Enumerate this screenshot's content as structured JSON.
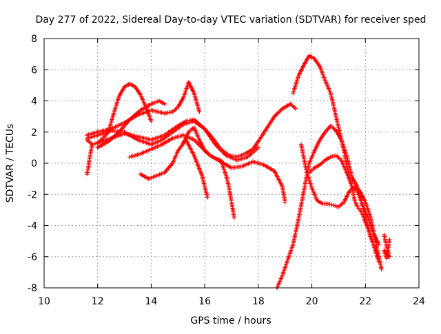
{
  "chart_data": {
    "type": "scatter",
    "title": "Day 277 of 2022, Sidereal Day-to-day VTEC variation (SDTVAR) for receiver sped",
    "xlabel": "GPS time / hours",
    "ylabel": "SDTVAR / TECUs",
    "xlim": [
      10,
      24
    ],
    "ylim": [
      -8,
      8
    ],
    "xticks": [
      "10",
      "12",
      "14",
      "16",
      "18",
      "20",
      "22",
      "24"
    ],
    "yticks": [
      "-8",
      "-6",
      "-4",
      "-2",
      "0",
      "2",
      "4",
      "6",
      "8"
    ],
    "grid": true,
    "marker": "+",
    "color": "#ff0000",
    "series": [
      {
        "x": [
          11.6,
          11.8,
          12.0,
          12.2,
          12.4,
          12.6,
          12.8,
          13.0,
          13.2,
          13.4,
          13.6,
          13.8,
          14.0
        ],
        "y": [
          1.5,
          1.2,
          1.3,
          1.6,
          2.0,
          3.2,
          4.3,
          4.9,
          5.1,
          4.9,
          4.4,
          3.6,
          2.7
        ]
      },
      {
        "x": [
          12.0,
          12.4,
          12.8,
          13.2,
          13.6,
          14.0,
          14.3,
          14.5
        ],
        "y": [
          1.0,
          1.4,
          2.0,
          2.8,
          3.4,
          3.8,
          4.0,
          3.8
        ]
      },
      {
        "x": [
          11.6,
          12.0,
          12.5,
          13.0,
          13.5,
          14.0,
          14.5,
          14.8,
          15.0,
          15.2,
          15.4,
          15.6,
          15.8
        ],
        "y": [
          1.8,
          2.0,
          2.2,
          2.6,
          3.1,
          3.4,
          3.2,
          3.3,
          3.6,
          4.2,
          5.2,
          4.5,
          3.3
        ]
      },
      {
        "x": [
          12.0,
          12.5,
          13.0,
          13.5,
          14.0,
          14.5,
          15.0,
          15.3,
          15.6,
          16.0,
          16.3,
          16.6,
          16.9,
          17.2,
          17.5,
          17.8,
          18.0,
          18.3,
          18.6,
          18.9,
          19.2,
          19.4
        ],
        "y": [
          1.3,
          1.6,
          1.9,
          1.7,
          1.5,
          1.8,
          2.4,
          2.7,
          2.8,
          2.2,
          1.6,
          0.9,
          0.5,
          0.4,
          0.6,
          0.9,
          1.4,
          2.2,
          3.0,
          3.5,
          3.8,
          3.5
        ]
      },
      {
        "x": [
          11.6,
          12.0,
          12.5,
          13.0,
          13.5,
          14.0,
          14.4,
          14.8,
          15.2,
          15.6,
          16.0,
          16.4,
          16.8,
          17.2,
          17.6,
          17.8,
          18.0
        ],
        "y": [
          1.6,
          1.8,
          2.1,
          2.0,
          1.5,
          1.2,
          1.5,
          2.0,
          2.5,
          2.7,
          2.2,
          1.2,
          0.5,
          0.2,
          0.4,
          0.7,
          1.0
        ]
      },
      {
        "x": [
          13.2,
          13.6,
          14.0,
          14.4,
          14.8,
          15.2,
          15.6,
          15.9,
          16.2,
          16.6,
          17.0,
          17.4,
          17.8,
          18.2,
          18.6,
          18.9,
          19.0
        ],
        "y": [
          0.4,
          0.6,
          0.9,
          1.2,
          1.6,
          1.8,
          1.5,
          1.0,
          0.5,
          0.1,
          -0.3,
          -0.2,
          0.1,
          -0.1,
          -0.5,
          -1.5,
          -2.5
        ]
      },
      {
        "x": [
          13.6,
          13.9,
          14.2,
          14.5,
          14.8,
          15.0,
          15.3,
          15.6,
          15.9,
          16.1
        ],
        "y": [
          -0.7,
          -1.0,
          -0.8,
          -0.6,
          0.0,
          0.8,
          1.5,
          0.5,
          -0.8,
          -2.2
        ]
      },
      {
        "x": [
          15.2,
          15.4,
          15.6,
          15.8,
          16.0,
          16.2,
          16.4,
          16.6,
          16.8,
          16.9,
          17.0,
          17.1
        ],
        "y": [
          1.3,
          2.0,
          2.3,
          1.5,
          0.8,
          0.5,
          0.3,
          0.2,
          -0.8,
          -1.5,
          -2.5,
          -3.5
        ]
      },
      {
        "x": [
          19.3,
          19.5,
          19.7,
          19.9,
          20.1,
          20.3,
          20.5,
          20.7,
          20.8,
          20.9,
          21.0,
          21.1,
          21.2,
          21.3,
          21.4,
          21.5,
          21.6,
          21.7,
          21.8,
          21.9,
          22.0,
          22.1,
          22.2,
          22.3,
          22.4,
          22.5
        ],
        "y": [
          4.5,
          5.6,
          6.3,
          6.9,
          6.7,
          6.2,
          5.3,
          4.5,
          3.8,
          3.0,
          2.3,
          1.5,
          0.8,
          -0.1,
          -0.8,
          -1.5,
          -2.4,
          -2.8,
          -3.0,
          -3.3,
          -3.8,
          -4.2,
          -4.8,
          -5.2,
          -5.8,
          -6.3
        ]
      },
      {
        "x": [
          18.7,
          18.9,
          19.1,
          19.3,
          19.5,
          19.7,
          19.9,
          20.1,
          20.3,
          20.5,
          20.7,
          20.9,
          21.1,
          21.3,
          21.5,
          21.7,
          21.9,
          22.1,
          22.3,
          22.5
        ],
        "y": [
          -8.0,
          -7.2,
          -6.2,
          -5.2,
          -3.6,
          -1.8,
          0.0,
          0.8,
          1.5,
          2.0,
          2.4,
          2.1,
          1.5,
          0.5,
          -0.9,
          -1.5,
          -2.8,
          -4.1,
          -5.2,
          -6.0
        ]
      },
      {
        "x": [
          19.6,
          19.8,
          20.0,
          20.2,
          20.4,
          20.6,
          20.8,
          21.0,
          21.2,
          21.4,
          21.6,
          21.8,
          22.0,
          22.2,
          22.4,
          22.6
        ],
        "y": [
          1.2,
          -0.5,
          -1.6,
          -2.4,
          -2.6,
          -2.6,
          -2.7,
          -2.8,
          -2.5,
          -1.8,
          -1.5,
          -1.8,
          -2.5,
          -3.5,
          -5.2,
          -6.8
        ]
      },
      {
        "x": [
          19.9,
          20.1,
          20.3,
          20.5,
          20.7,
          20.9,
          21.1,
          21.3,
          21.5,
          21.7,
          21.9,
          22.1,
          22.3,
          22.5
        ],
        "y": [
          -0.6,
          -0.3,
          -0.1,
          0.2,
          0.4,
          0.5,
          0.2,
          -0.6,
          -1.5,
          -1.8,
          -2.7,
          -3.5,
          -4.5,
          -5.2
        ]
      },
      {
        "x": [
          22.7,
          22.75,
          22.8,
          22.85,
          22.9,
          22.7,
          22.75,
          22.8,
          22.85,
          22.9
        ],
        "y": [
          -4.6,
          -5.0,
          -5.4,
          -5.7,
          -6.0,
          -5.6,
          -5.9,
          -6.1,
          -5.5,
          -4.9
        ]
      },
      {
        "x": [
          11.6,
          11.65,
          11.7,
          11.75,
          11.8
        ],
        "y": [
          -0.7,
          -0.3,
          0.3,
          0.8,
          1.2
        ]
      }
    ]
  }
}
